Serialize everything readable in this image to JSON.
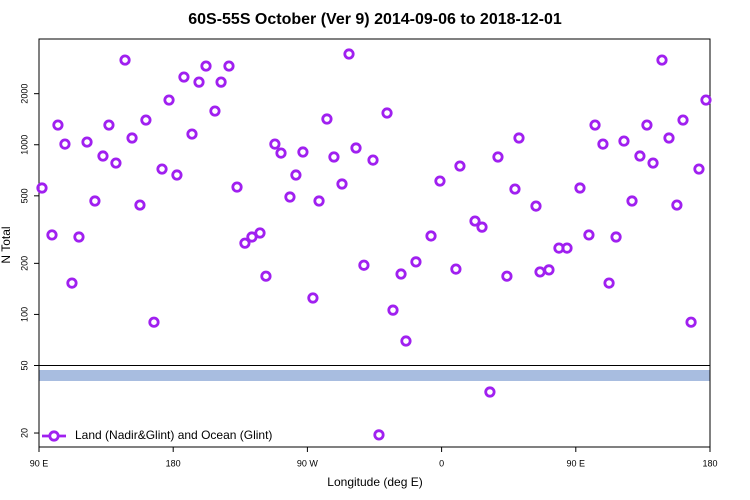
{
  "chart_data": {
    "type": "scatter",
    "title": "60S-55S October (Ver 9)   2014-09-06 to 2018-12-01",
    "x_label": "Longitude (deg E)",
    "y_label": "N Total",
    "xlim": [
      90,
      540
    ],
    "xticks": [
      {
        "value": 90,
        "label": "90 E"
      },
      180,
      {
        "value": 270,
        "label": "90 W"
      },
      {
        "value": 360,
        "label": "0"
      },
      {
        "value": 450,
        "label": "90 E"
      },
      {
        "value": 540,
        "label": "180"
      }
    ],
    "ylim": [
      17,
      4200
    ],
    "y_log": true,
    "yticks": [
      20,
      50,
      100,
      200,
      500,
      1000,
      2000
    ],
    "legend_position": "bottom-left",
    "series": [
      {
        "name": "Land (Nadir&Glint) and Ocean (Glint)",
        "color": "#a020f0",
        "x": [
          92.0,
          98.7,
          102.7,
          107.4,
          112.1,
          116.8,
          122.2,
          127.5,
          132.9,
          136.9,
          141.6,
          147.7,
          152.4,
          157.7,
          161.7,
          167.1,
          172.5,
          177.2,
          182.5,
          187.2,
          192.6,
          197.3,
          202.0,
          208.0,
          212.1,
          217.4,
          222.8,
          228.1,
          232.8,
          238.2,
          242.2,
          248.2,
          252.3,
          258.3,
          262.3,
          267.0,
          273.7,
          277.8,
          283.1,
          287.8,
          293.2,
          297.9,
          302.6,
          307.9,
          314.0,
          318.0,
          323.4,
          327.4,
          332.8,
          336.1,
          342.8,
          352.9,
          358.9,
          369.6,
          372.3,
          382.4,
          387.1,
          392.4,
          397.8,
          403.8,
          409.2,
          411.9,
          423.3,
          426.0,
          432.0,
          438.7,
          444.1,
          452.8,
          458.8,
          462.9,
          468.2,
          472.3,
          477.0,
          482.3,
          487.7,
          493.0,
          497.7,
          501.8,
          507.8,
          512.5,
          517.8,
          521.9,
          527.3,
          532.6,
          537.3
        ],
        "values": [
          556,
          294,
          1306,
          1009,
          153,
          286,
          1037,
          466,
          858,
          1306,
          780,
          3155,
          1096,
          441,
          1398,
          90,
          719,
          1834,
          663,
          2506,
          1156,
          2340,
          2909,
          1580,
          2340,
          2909,
          563,
          263,
          286,
          302,
          168,
          1009,
          893,
          492,
          663,
          906,
          125,
          466,
          1418,
          847,
          587,
          3425,
          957,
          195,
          812,
          19.5,
          1538,
          106,
          173,
          69.7,
          204,
          290,
          611,
          185,
          749,
          355,
          327,
          34.9,
          847,
          168,
          548,
          1096,
          435,
          178,
          183,
          246,
          246,
          556,
          294,
          1306,
          1009,
          153,
          286,
          1051,
          466,
          858,
          1306,
          780,
          3155,
          1096,
          441,
          1398,
          90,
          719,
          1834
        ]
      }
    ]
  }
}
